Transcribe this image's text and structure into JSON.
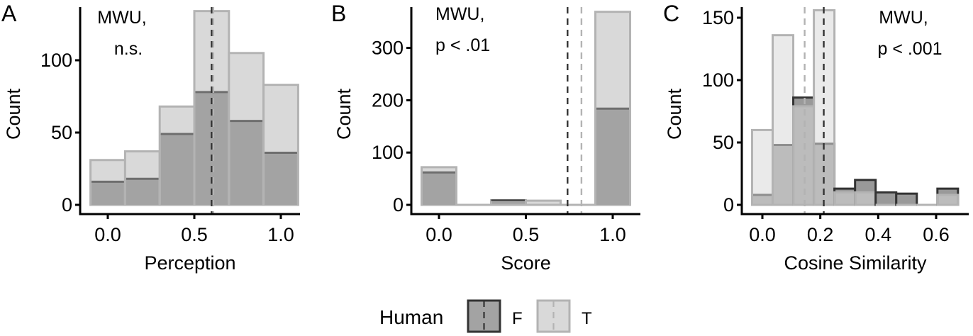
{
  "colors": {
    "F_fill": "#a3a3a3",
    "F_line": "#333333",
    "F_stack_line": "#6e6e6e",
    "T_fill": "#d9d9d9",
    "T_line": "#b3b3b3",
    "axis": "#000000"
  },
  "legend": {
    "title": "Human",
    "items": [
      {
        "key": "F",
        "label": "F"
      },
      {
        "key": "T",
        "label": "T"
      }
    ]
  },
  "chart_data": [
    {
      "panel": "A",
      "type": "bar",
      "position": "stack",
      "title": "",
      "xlabel": "Perception",
      "ylabel": "Count",
      "annotation": [
        "MWU,",
        "n.s."
      ],
      "xlim": [
        -0.1,
        1.1
      ],
      "ylim": [
        0,
        134
      ],
      "xticks": [
        0.0,
        0.5,
        1.0
      ],
      "xtick_labels": [
        "0.0",
        "0.5",
        "1.0"
      ],
      "yticks": [
        0,
        50,
        100
      ],
      "bin_width": 0.2,
      "bin_centers": [
        0.0,
        0.2,
        0.4,
        0.6,
        0.8,
        1.0
      ],
      "series": [
        {
          "name": "F",
          "values": [
            16,
            18,
            49,
            78,
            58,
            36
          ]
        },
        {
          "name": "T",
          "values": [
            15,
            19,
            19,
            56,
            47,
            47
          ]
        }
      ],
      "means": [
        {
          "group": "F",
          "x": 0.6
        },
        {
          "group": "T",
          "x": 0.61
        }
      ]
    },
    {
      "panel": "B",
      "type": "bar",
      "position": "stack",
      "title": "",
      "xlabel": "Score",
      "ylabel": "Count",
      "annotation": [
        "MWU,",
        "p < .01"
      ],
      "xlim": [
        -0.1,
        1.1
      ],
      "ylim": [
        0,
        369
      ],
      "xticks": [
        0.0,
        0.5,
        1.0
      ],
      "xtick_labels": [
        "0.0",
        "0.5",
        "1.0"
      ],
      "yticks": [
        0,
        100,
        200,
        300
      ],
      "bin_width": 0.2,
      "bin_centers": [
        0.0,
        0.2,
        0.4,
        0.6,
        0.8,
        1.0
      ],
      "series": [
        {
          "name": "F",
          "values": [
            62,
            0,
            9,
            0,
            0,
            184
          ]
        },
        {
          "name": "T",
          "values": [
            10,
            0,
            0,
            8,
            0,
            185
          ]
        }
      ],
      "means": [
        {
          "group": "F",
          "x": 0.74
        },
        {
          "group": "T",
          "x": 0.82
        }
      ]
    },
    {
      "panel": "C",
      "type": "bar",
      "position": "identity",
      "title": "",
      "xlabel": "Cosine Similarity",
      "ylabel": "Count",
      "annotation": [
        "MWU,",
        "p < .001"
      ],
      "xlim": [
        -0.04,
        0.7
      ],
      "ylim": [
        0,
        156
      ],
      "xticks": [
        0.0,
        0.2,
        0.4,
        0.6
      ],
      "xtick_labels": [
        "0.0",
        "0.2",
        "0.4",
        "0.6"
      ],
      "yticks": [
        0,
        50,
        100,
        150
      ],
      "bin_width": 0.0711,
      "bin_centers": [
        0.0,
        0.0711,
        0.1422,
        0.2133,
        0.2844,
        0.3556,
        0.4267,
        0.4978,
        0.5689,
        0.64
      ],
      "series": [
        {
          "name": "F",
          "values": [
            8,
            48,
            86,
            49,
            13,
            20,
            10,
            9,
            0,
            13
          ]
        },
        {
          "name": "T",
          "values": [
            60,
            136,
            79,
            156,
            10,
            10,
            0,
            0,
            0,
            8
          ]
        }
      ],
      "means": [
        {
          "group": "F",
          "x": 0.212
        },
        {
          "group": "T",
          "x": 0.146
        }
      ]
    }
  ]
}
